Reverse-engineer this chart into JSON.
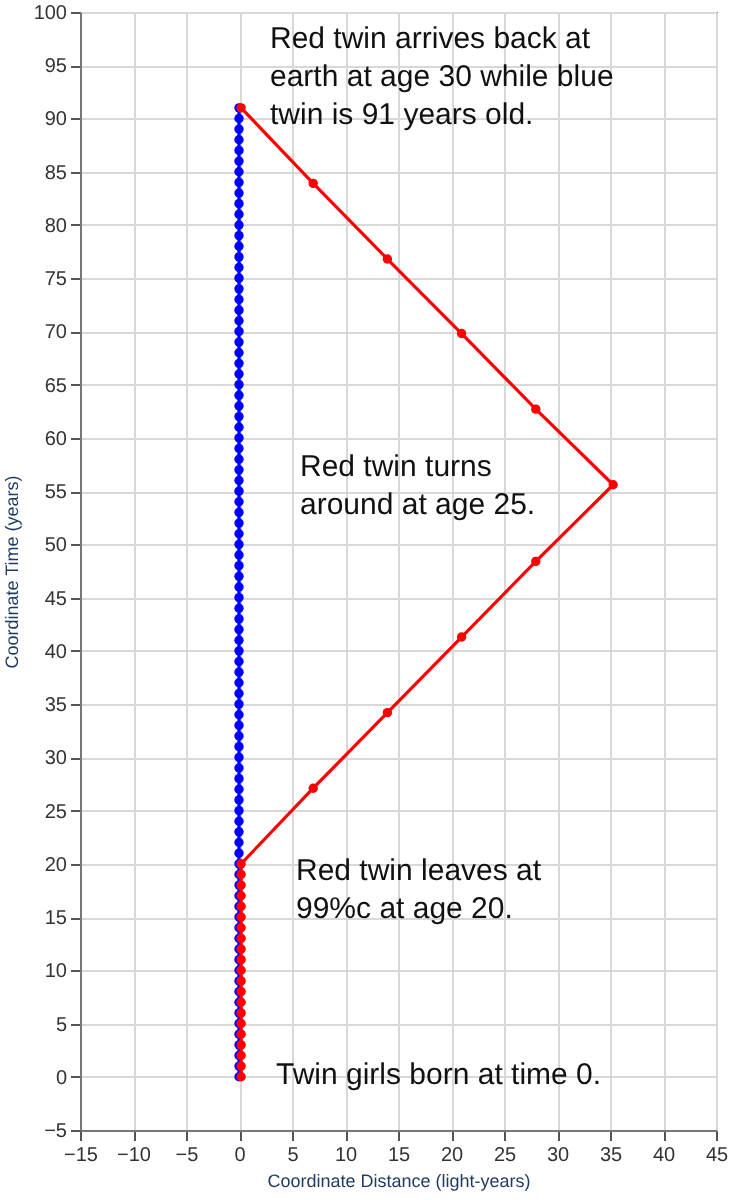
{
  "chart_data": {
    "type": "line",
    "xlabel": "Coordinate Distance (light-years)",
    "ylabel": "Coordinate Time (years)",
    "xlim": [
      -15,
      45
    ],
    "xticks": [
      -15,
      -10,
      -5,
      0,
      5,
      10,
      15,
      20,
      25,
      30,
      35,
      40,
      45
    ],
    "ylim": [
      -5,
      100
    ],
    "yticks": [
      -5,
      0,
      5,
      10,
      15,
      20,
      25,
      30,
      35,
      40,
      45,
      50,
      55,
      60,
      65,
      70,
      75,
      80,
      85,
      90,
      95,
      100
    ],
    "grid": true,
    "marker": "circle",
    "line_style": "solid",
    "series": [
      {
        "color": "#0000ff",
        "x": [
          0,
          0,
          0,
          0,
          0,
          0,
          0,
          0,
          0,
          0,
          0,
          0,
          0,
          0,
          0,
          0,
          0,
          0,
          0,
          0,
          0,
          0,
          0,
          0,
          0,
          0,
          0,
          0,
          0,
          0,
          0,
          0,
          0,
          0,
          0,
          0,
          0,
          0,
          0,
          0,
          0,
          0,
          0,
          0,
          0,
          0,
          0,
          0,
          0,
          0,
          0,
          0,
          0,
          0,
          0,
          0,
          0,
          0,
          0,
          0,
          0,
          0,
          0,
          0,
          0,
          0,
          0,
          0,
          0,
          0,
          0,
          0,
          0,
          0,
          0,
          0,
          0,
          0,
          0,
          0,
          0,
          0,
          0,
          0,
          0,
          0,
          0,
          0,
          0,
          0,
          0,
          0
        ],
        "values": [
          0,
          1,
          2,
          3,
          4,
          5,
          6,
          7,
          8,
          9,
          10,
          11,
          12,
          13,
          14,
          15,
          16,
          17,
          18,
          19,
          20,
          21,
          22,
          23,
          24,
          25,
          26,
          27,
          28,
          29,
          30,
          31,
          32,
          33,
          34,
          35,
          36,
          37,
          38,
          39,
          40,
          41,
          42,
          43,
          44,
          45,
          46,
          47,
          48,
          49,
          50,
          51,
          52,
          53,
          54,
          55,
          56,
          57,
          58,
          59,
          60,
          61,
          62,
          63,
          64,
          65,
          66,
          67,
          68,
          69,
          70,
          71,
          72,
          73,
          74,
          75,
          76,
          77,
          78,
          79,
          80,
          81,
          82,
          83,
          84,
          85,
          86,
          87,
          88,
          89,
          90,
          91
        ]
      },
      {
        "color": "#ff0000",
        "x": [
          0.2,
          0.2,
          0.2,
          0.2,
          0.2,
          0.2,
          0.2,
          0.2,
          0.2,
          0.2,
          0.2,
          0.2,
          0.2,
          0.2,
          0.2,
          0.2,
          0.2,
          0.2,
          0.2,
          0.2,
          0.2,
          7,
          14,
          21,
          28,
          35.3,
          28,
          21,
          14,
          7,
          0.2
        ],
        "values": [
          0,
          1,
          2,
          3,
          4,
          5,
          6,
          7,
          8,
          9,
          10,
          11,
          12,
          13,
          14,
          15,
          16,
          17,
          18,
          19,
          20,
          27.1,
          34.2,
          41.3,
          48.4,
          55.6,
          62.7,
          69.8,
          76.8,
          83.9,
          91
        ]
      }
    ],
    "annotations": [
      "Red twin arrives back at earth at age 30 while blue twin is 91 years old.",
      "Red twin turns around at age 25.",
      "Red twin leaves at 99%c at age 20.",
      "Twin girls born at time 0."
    ]
  }
}
